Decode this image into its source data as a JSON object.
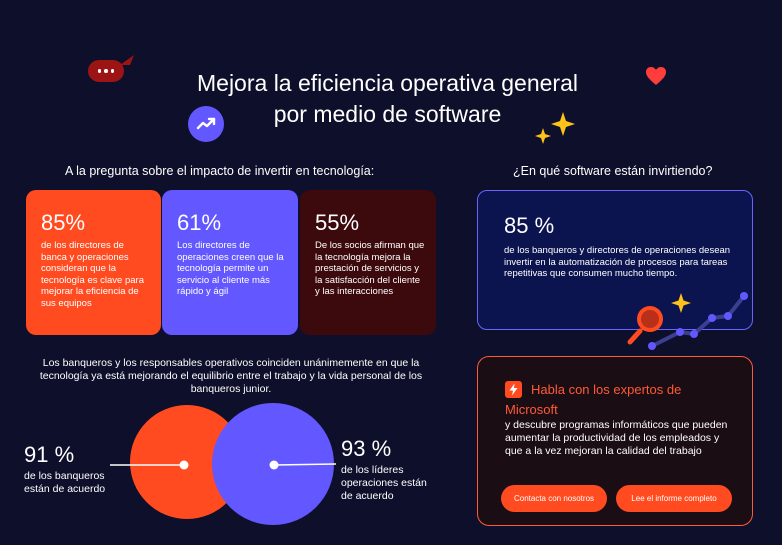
{
  "title": {
    "line1": "Mejora la eficiencia operativa general",
    "line2": "por medio de software"
  },
  "left": {
    "question": "A la pregunta sobre el impacto de invertir en tecnología:",
    "cards": [
      {
        "pct": "85%",
        "desc": "de los directores de banca y operaciones consideran que la tecnología es clave para mejorar la eficiencia de sus equipos"
      },
      {
        "pct": "61%",
        "desc": "Los directores de operaciones creen que la tecnología permite un servicio al cliente más rápido y ágil"
      },
      {
        "pct": "55%",
        "desc": "De los socios afirman que la tecnología mejora la prestación de servicios y la satisfacción del cliente y las interacciones"
      }
    ]
  },
  "right": {
    "question": "¿En qué software están invirtiendo?",
    "stat": {
      "pct": "85 %",
      "desc": "de los banqueros y directores de operaciones desean invertir en la automatización de procesos para tareas repetitivas que consumen mucho tiempo."
    }
  },
  "balance": {
    "intro": "Los banqueros y los responsables operativos coinciden unánimemente en que la tecnología ya está mejorando el equilibrio entre el trabajo y la vida personal de los banqueros junior.",
    "bankers": {
      "pct": "91 %",
      "desc": "de los banqueros están de acuerdo"
    },
    "leaders": {
      "pct": "93 %",
      "desc": "de los líderes operaciones están de acuerdo"
    }
  },
  "cta": {
    "headline": "Habla con los expertos de Microsoft",
    "body": "y descubre programas informáticos que pueden aumentar la productividad de los empleados y que a la vez mejoran la calidad del trabajo",
    "buttons": {
      "contact": "Contacta con nosotros",
      "report": "Lee el informe completo"
    }
  },
  "colors": {
    "background": "#0e0f2b",
    "orange": "#ff4b1f",
    "purple": "#6357ff",
    "maroon": "#3c0a0d",
    "gold": "#ffc21a"
  },
  "icons": [
    "chat-bubble-icon",
    "trend-up-icon",
    "heart-icon",
    "sparkle-icon",
    "lightning-icon",
    "magnifier-icon",
    "line-chart-icon"
  ]
}
